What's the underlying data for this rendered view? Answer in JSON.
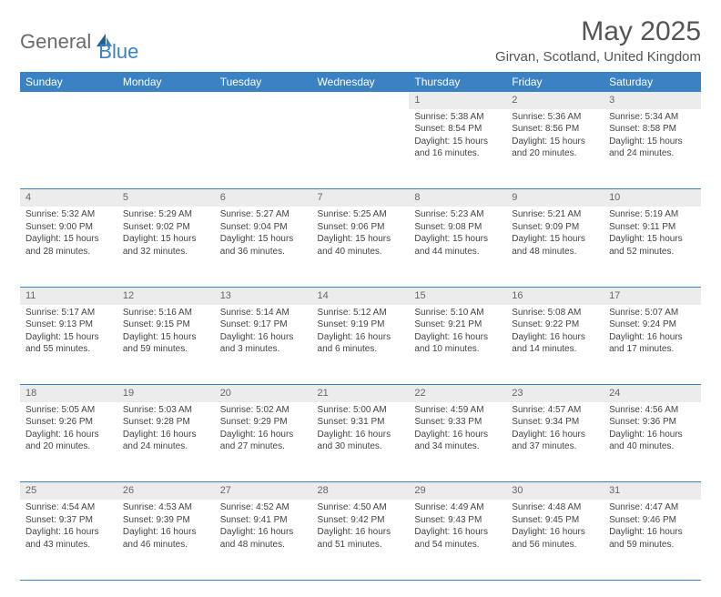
{
  "logo": {
    "part1": "General",
    "part2": "Blue"
  },
  "title": "May 2025",
  "location": "Girvan, Scotland, United Kingdom",
  "colors": {
    "header_bg": "#3b82c4",
    "header_text": "#ffffff",
    "daynum_bg": "#ececec",
    "border": "#3b82c4",
    "page_bg": "#ffffff",
    "text": "#444444",
    "logo_gray": "#6b6b6b",
    "logo_blue": "#3b82c4"
  },
  "weekdays": [
    "Sunday",
    "Monday",
    "Tuesday",
    "Wednesday",
    "Thursday",
    "Friday",
    "Saturday"
  ],
  "weeks": [
    [
      null,
      null,
      null,
      null,
      {
        "n": "1",
        "sr": "5:38 AM",
        "ss": "8:54 PM",
        "dl": "15 hours and 16 minutes."
      },
      {
        "n": "2",
        "sr": "5:36 AM",
        "ss": "8:56 PM",
        "dl": "15 hours and 20 minutes."
      },
      {
        "n": "3",
        "sr": "5:34 AM",
        "ss": "8:58 PM",
        "dl": "15 hours and 24 minutes."
      }
    ],
    [
      {
        "n": "4",
        "sr": "5:32 AM",
        "ss": "9:00 PM",
        "dl": "15 hours and 28 minutes."
      },
      {
        "n": "5",
        "sr": "5:29 AM",
        "ss": "9:02 PM",
        "dl": "15 hours and 32 minutes."
      },
      {
        "n": "6",
        "sr": "5:27 AM",
        "ss": "9:04 PM",
        "dl": "15 hours and 36 minutes."
      },
      {
        "n": "7",
        "sr": "5:25 AM",
        "ss": "9:06 PM",
        "dl": "15 hours and 40 minutes."
      },
      {
        "n": "8",
        "sr": "5:23 AM",
        "ss": "9:08 PM",
        "dl": "15 hours and 44 minutes."
      },
      {
        "n": "9",
        "sr": "5:21 AM",
        "ss": "9:09 PM",
        "dl": "15 hours and 48 minutes."
      },
      {
        "n": "10",
        "sr": "5:19 AM",
        "ss": "9:11 PM",
        "dl": "15 hours and 52 minutes."
      }
    ],
    [
      {
        "n": "11",
        "sr": "5:17 AM",
        "ss": "9:13 PM",
        "dl": "15 hours and 55 minutes."
      },
      {
        "n": "12",
        "sr": "5:16 AM",
        "ss": "9:15 PM",
        "dl": "15 hours and 59 minutes."
      },
      {
        "n": "13",
        "sr": "5:14 AM",
        "ss": "9:17 PM",
        "dl": "16 hours and 3 minutes."
      },
      {
        "n": "14",
        "sr": "5:12 AM",
        "ss": "9:19 PM",
        "dl": "16 hours and 6 minutes."
      },
      {
        "n": "15",
        "sr": "5:10 AM",
        "ss": "9:21 PM",
        "dl": "16 hours and 10 minutes."
      },
      {
        "n": "16",
        "sr": "5:08 AM",
        "ss": "9:22 PM",
        "dl": "16 hours and 14 minutes."
      },
      {
        "n": "17",
        "sr": "5:07 AM",
        "ss": "9:24 PM",
        "dl": "16 hours and 17 minutes."
      }
    ],
    [
      {
        "n": "18",
        "sr": "5:05 AM",
        "ss": "9:26 PM",
        "dl": "16 hours and 20 minutes."
      },
      {
        "n": "19",
        "sr": "5:03 AM",
        "ss": "9:28 PM",
        "dl": "16 hours and 24 minutes."
      },
      {
        "n": "20",
        "sr": "5:02 AM",
        "ss": "9:29 PM",
        "dl": "16 hours and 27 minutes."
      },
      {
        "n": "21",
        "sr": "5:00 AM",
        "ss": "9:31 PM",
        "dl": "16 hours and 30 minutes."
      },
      {
        "n": "22",
        "sr": "4:59 AM",
        "ss": "9:33 PM",
        "dl": "16 hours and 34 minutes."
      },
      {
        "n": "23",
        "sr": "4:57 AM",
        "ss": "9:34 PM",
        "dl": "16 hours and 37 minutes."
      },
      {
        "n": "24",
        "sr": "4:56 AM",
        "ss": "9:36 PM",
        "dl": "16 hours and 40 minutes."
      }
    ],
    [
      {
        "n": "25",
        "sr": "4:54 AM",
        "ss": "9:37 PM",
        "dl": "16 hours and 43 minutes."
      },
      {
        "n": "26",
        "sr": "4:53 AM",
        "ss": "9:39 PM",
        "dl": "16 hours and 46 minutes."
      },
      {
        "n": "27",
        "sr": "4:52 AM",
        "ss": "9:41 PM",
        "dl": "16 hours and 48 minutes."
      },
      {
        "n": "28",
        "sr": "4:50 AM",
        "ss": "9:42 PM",
        "dl": "16 hours and 51 minutes."
      },
      {
        "n": "29",
        "sr": "4:49 AM",
        "ss": "9:43 PM",
        "dl": "16 hours and 54 minutes."
      },
      {
        "n": "30",
        "sr": "4:48 AM",
        "ss": "9:45 PM",
        "dl": "16 hours and 56 minutes."
      },
      {
        "n": "31",
        "sr": "4:47 AM",
        "ss": "9:46 PM",
        "dl": "16 hours and 59 minutes."
      }
    ]
  ],
  "labels": {
    "sunrise": "Sunrise: ",
    "sunset": "Sunset: ",
    "daylight": "Daylight: "
  }
}
